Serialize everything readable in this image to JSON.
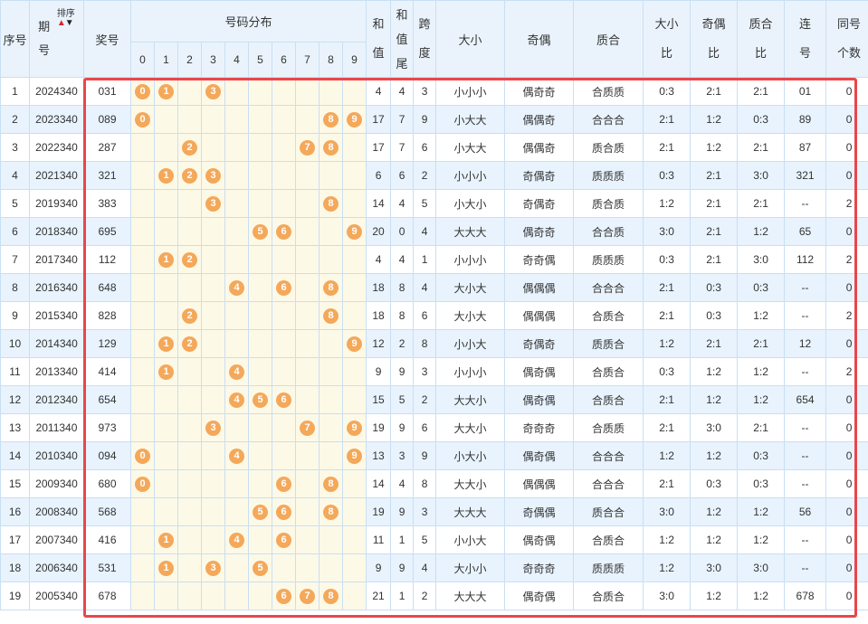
{
  "header": {
    "seq": "序号",
    "period_top": "期",
    "period_bottom": "号",
    "sort_label": "排序",
    "sort_up_icon": "▲",
    "sort_down_icon": "▼",
    "prize": "奖号",
    "distribution": "号码分布",
    "digits": [
      "0",
      "1",
      "2",
      "3",
      "4",
      "5",
      "6",
      "7",
      "8",
      "9"
    ],
    "sum_top": "和",
    "sum_bottom": "值",
    "sumtail_1": "和",
    "sumtail_2": "值",
    "sumtail_3": "尾",
    "span_top": "跨",
    "span_bottom": "度",
    "size": "大小",
    "parity": "奇偶",
    "prime": "质合",
    "size_ratio_top": "大小",
    "size_ratio_bottom": "比",
    "parity_ratio_top": "奇偶",
    "parity_ratio_bottom": "比",
    "prime_ratio_top": "质合",
    "prime_ratio_bottom": "比",
    "consec_top": "连",
    "consec_bottom": "号",
    "same_top": "同号",
    "same_bottom": "个数"
  },
  "colors": {
    "ball": "#f4a85a",
    "highlight_border": "#e8474b",
    "row_alt": "#e8f3fd",
    "dist_bg": "#fdf9e7",
    "header_bg": "#eaf3fc"
  },
  "rows": [
    {
      "seq": "1",
      "period": "2024340",
      "prize": "031",
      "balls": [
        "0",
        "1",
        "",
        "3",
        "",
        "",
        "",
        "",
        "",
        ""
      ],
      "sum": "4",
      "tail": "4",
      "span": "3",
      "size": "小小小",
      "parity": "偶奇奇",
      "prime": "合质质",
      "size_ratio": "0:3",
      "parity_ratio": "2:1",
      "prime_ratio": "2:1",
      "consec": "01",
      "same": "0"
    },
    {
      "seq": "2",
      "period": "2023340",
      "prize": "089",
      "balls": [
        "0",
        "",
        "",
        "",
        "",
        "",
        "",
        "",
        "8",
        "9"
      ],
      "sum": "17",
      "tail": "7",
      "span": "9",
      "size": "小大大",
      "parity": "偶偶奇",
      "prime": "合合合",
      "size_ratio": "2:1",
      "parity_ratio": "1:2",
      "prime_ratio": "0:3",
      "consec": "89",
      "same": "0"
    },
    {
      "seq": "3",
      "period": "2022340",
      "prize": "287",
      "balls": [
        "",
        "",
        "2",
        "",
        "",
        "",
        "",
        "7",
        "8",
        ""
      ],
      "sum": "17",
      "tail": "7",
      "span": "6",
      "size": "小大大",
      "parity": "偶偶奇",
      "prime": "质合质",
      "size_ratio": "2:1",
      "parity_ratio": "1:2",
      "prime_ratio": "2:1",
      "consec": "87",
      "same": "0"
    },
    {
      "seq": "4",
      "period": "2021340",
      "prize": "321",
      "balls": [
        "",
        "1",
        "2",
        "3",
        "",
        "",
        "",
        "",
        "",
        ""
      ],
      "sum": "6",
      "tail": "6",
      "span": "2",
      "size": "小小小",
      "parity": "奇偶奇",
      "prime": "质质质",
      "size_ratio": "0:3",
      "parity_ratio": "2:1",
      "prime_ratio": "3:0",
      "consec": "321",
      "same": "0"
    },
    {
      "seq": "5",
      "period": "2019340",
      "prize": "383",
      "balls": [
        "",
        "",
        "",
        "3",
        "",
        "",
        "",
        "",
        "8",
        ""
      ],
      "sum": "14",
      "tail": "4",
      "span": "5",
      "size": "小大小",
      "parity": "奇偶奇",
      "prime": "质合质",
      "size_ratio": "1:2",
      "parity_ratio": "2:1",
      "prime_ratio": "2:1",
      "consec": "--",
      "same": "2"
    },
    {
      "seq": "6",
      "period": "2018340",
      "prize": "695",
      "balls": [
        "",
        "",
        "",
        "",
        "",
        "5",
        "6",
        "",
        "",
        "9"
      ],
      "sum": "20",
      "tail": "0",
      "span": "4",
      "size": "大大大",
      "parity": "偶奇奇",
      "prime": "合合质",
      "size_ratio": "3:0",
      "parity_ratio": "2:1",
      "prime_ratio": "1:2",
      "consec": "65",
      "same": "0"
    },
    {
      "seq": "7",
      "period": "2017340",
      "prize": "112",
      "balls": [
        "",
        "1",
        "2",
        "",
        "",
        "",
        "",
        "",
        "",
        ""
      ],
      "sum": "4",
      "tail": "4",
      "span": "1",
      "size": "小小小",
      "parity": "奇奇偶",
      "prime": "质质质",
      "size_ratio": "0:3",
      "parity_ratio": "2:1",
      "prime_ratio": "3:0",
      "consec": "112",
      "same": "2"
    },
    {
      "seq": "8",
      "period": "2016340",
      "prize": "648",
      "balls": [
        "",
        "",
        "",
        "",
        "4",
        "",
        "6",
        "",
        "8",
        ""
      ],
      "sum": "18",
      "tail": "8",
      "span": "4",
      "size": "大小大",
      "parity": "偶偶偶",
      "prime": "合合合",
      "size_ratio": "2:1",
      "parity_ratio": "0:3",
      "prime_ratio": "0:3",
      "consec": "--",
      "same": "0"
    },
    {
      "seq": "9",
      "period": "2015340",
      "prize": "828",
      "balls": [
        "",
        "",
        "2",
        "",
        "",
        "",
        "",
        "",
        "8",
        ""
      ],
      "sum": "18",
      "tail": "8",
      "span": "6",
      "size": "大小大",
      "parity": "偶偶偶",
      "prime": "合质合",
      "size_ratio": "2:1",
      "parity_ratio": "0:3",
      "prime_ratio": "1:2",
      "consec": "--",
      "same": "2"
    },
    {
      "seq": "10",
      "period": "2014340",
      "prize": "129",
      "balls": [
        "",
        "1",
        "2",
        "",
        "",
        "",
        "",
        "",
        "",
        "9"
      ],
      "sum": "12",
      "tail": "2",
      "span": "8",
      "size": "小小大",
      "parity": "奇偶奇",
      "prime": "质质合",
      "size_ratio": "1:2",
      "parity_ratio": "2:1",
      "prime_ratio": "2:1",
      "consec": "12",
      "same": "0"
    },
    {
      "seq": "11",
      "period": "2013340",
      "prize": "414",
      "balls": [
        "",
        "1",
        "",
        "",
        "4",
        "",
        "",
        "",
        "",
        ""
      ],
      "sum": "9",
      "tail": "9",
      "span": "3",
      "size": "小小小",
      "parity": "偶奇偶",
      "prime": "合质合",
      "size_ratio": "0:3",
      "parity_ratio": "1:2",
      "prime_ratio": "1:2",
      "consec": "--",
      "same": "2"
    },
    {
      "seq": "12",
      "period": "2012340",
      "prize": "654",
      "balls": [
        "",
        "",
        "",
        "",
        "4",
        "5",
        "6",
        "",
        "",
        ""
      ],
      "sum": "15",
      "tail": "5",
      "span": "2",
      "size": "大大小",
      "parity": "偶奇偶",
      "prime": "合质合",
      "size_ratio": "2:1",
      "parity_ratio": "1:2",
      "prime_ratio": "1:2",
      "consec": "654",
      "same": "0"
    },
    {
      "seq": "13",
      "period": "2011340",
      "prize": "973",
      "balls": [
        "",
        "",
        "",
        "3",
        "",
        "",
        "",
        "7",
        "",
        "9"
      ],
      "sum": "19",
      "tail": "9",
      "span": "6",
      "size": "大大小",
      "parity": "奇奇奇",
      "prime": "合质质",
      "size_ratio": "2:1",
      "parity_ratio": "3:0",
      "prime_ratio": "2:1",
      "consec": "--",
      "same": "0"
    },
    {
      "seq": "14",
      "period": "2010340",
      "prize": "094",
      "balls": [
        "0",
        "",
        "",
        "",
        "4",
        "",
        "",
        "",
        "",
        "9"
      ],
      "sum": "13",
      "tail": "3",
      "span": "9",
      "size": "小大小",
      "parity": "偶奇偶",
      "prime": "合合合",
      "size_ratio": "1:2",
      "parity_ratio": "1:2",
      "prime_ratio": "0:3",
      "consec": "--",
      "same": "0"
    },
    {
      "seq": "15",
      "period": "2009340",
      "prize": "680",
      "balls": [
        "0",
        "",
        "",
        "",
        "",
        "",
        "6",
        "",
        "8",
        ""
      ],
      "sum": "14",
      "tail": "4",
      "span": "8",
      "size": "大大小",
      "parity": "偶偶偶",
      "prime": "合合合",
      "size_ratio": "2:1",
      "parity_ratio": "0:3",
      "prime_ratio": "0:3",
      "consec": "--",
      "same": "0"
    },
    {
      "seq": "16",
      "period": "2008340",
      "prize": "568",
      "balls": [
        "",
        "",
        "",
        "",
        "",
        "5",
        "6",
        "",
        "8",
        ""
      ],
      "sum": "19",
      "tail": "9",
      "span": "3",
      "size": "大大大",
      "parity": "奇偶偶",
      "prime": "质合合",
      "size_ratio": "3:0",
      "parity_ratio": "1:2",
      "prime_ratio": "1:2",
      "consec": "56",
      "same": "0"
    },
    {
      "seq": "17",
      "period": "2007340",
      "prize": "416",
      "balls": [
        "",
        "1",
        "",
        "",
        "4",
        "",
        "6",
        "",
        "",
        ""
      ],
      "sum": "11",
      "tail": "1",
      "span": "5",
      "size": "小小大",
      "parity": "偶奇偶",
      "prime": "合质合",
      "size_ratio": "1:2",
      "parity_ratio": "1:2",
      "prime_ratio": "1:2",
      "consec": "--",
      "same": "0"
    },
    {
      "seq": "18",
      "period": "2006340",
      "prize": "531",
      "balls": [
        "",
        "1",
        "",
        "3",
        "",
        "5",
        "",
        "",
        "",
        ""
      ],
      "sum": "9",
      "tail": "9",
      "span": "4",
      "size": "大小小",
      "parity": "奇奇奇",
      "prime": "质质质",
      "size_ratio": "1:2",
      "parity_ratio": "3:0",
      "prime_ratio": "3:0",
      "consec": "--",
      "same": "0"
    },
    {
      "seq": "19",
      "period": "2005340",
      "prize": "678",
      "balls": [
        "",
        "",
        "",
        "",
        "",
        "",
        "6",
        "7",
        "8",
        ""
      ],
      "sum": "21",
      "tail": "1",
      "span": "2",
      "size": "大大大",
      "parity": "偶奇偶",
      "prime": "合质合",
      "size_ratio": "3:0",
      "parity_ratio": "1:2",
      "prime_ratio": "1:2",
      "consec": "678",
      "same": "0"
    }
  ]
}
